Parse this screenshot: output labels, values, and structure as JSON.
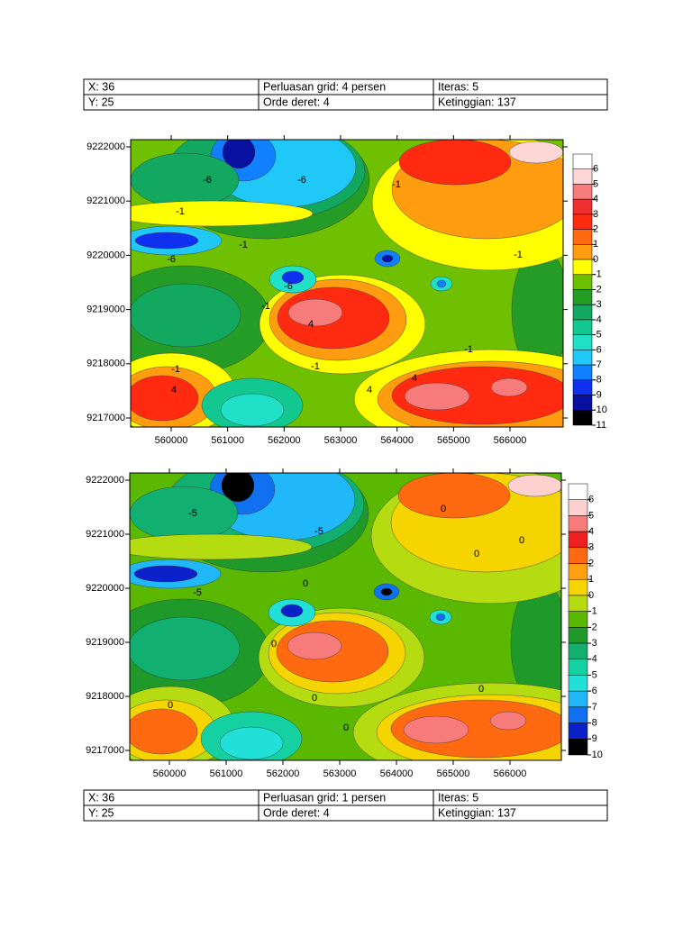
{
  "figures": [
    {
      "table": {
        "rows": [
          [
            "X: 36",
            "Perluasan grid: 4 persen",
            "Iteras: 5"
          ],
          [
            "Y: 25",
            "Orde deret: 4",
            "Ketinggian: 137"
          ]
        ]
      },
      "map": {
        "xticks": [
          560000,
          561000,
          562000,
          563000,
          564000,
          565000,
          566000
        ],
        "yticks": [
          9222000,
          9221000,
          9220000,
          9219000,
          9218000,
          9217000
        ],
        "colorbar_labels": [
          6,
          5,
          4,
          3,
          2,
          1,
          0,
          -1,
          -2,
          -3,
          -4,
          -5,
          -6,
          -7,
          -8,
          -9,
          -10,
          -11
        ],
        "colorbar_colors": [
          "#ffffff",
          "#ffd6d6",
          "#f77b7b",
          "#f03030",
          "#ff2a10",
          "#ff6a10",
          "#ff9c10",
          "#ffff00",
          "#6ec000",
          "#259c25",
          "#12a860",
          "#12c890",
          "#20e0c8",
          "#20c8f8",
          "#1080ff",
          "#1030f0",
          "#0810a0",
          "#000000"
        ],
        "contour_labels": [
          "-6",
          "-6",
          "-1",
          "-1",
          "-1",
          "-6",
          "-6",
          "-1",
          "4",
          "-1",
          "-1",
          "4",
          "4",
          "4",
          "-1",
          "-1"
        ]
      }
    },
    {
      "table": {
        "rows": [
          [
            "X: 36",
            "Perluasan grid: 1 persen",
            "Iteras: 5"
          ],
          [
            "Y: 25",
            "Orde deret: 4",
            "Ketinggian: 137"
          ]
        ]
      },
      "map": {
        "xticks": [
          560000,
          561000,
          562000,
          563000,
          564000,
          565000,
          566000
        ],
        "yticks": [
          9222000,
          9221000,
          9220000,
          9219000,
          9218000,
          9217000
        ],
        "colorbar_labels": [
          6,
          5,
          4,
          3,
          2,
          1,
          0,
          -1,
          -2,
          -3,
          -4,
          -5,
          -6,
          -7,
          -8,
          -9,
          -10
        ],
        "colorbar_colors": [
          "#ffffff",
          "#ffd0d0",
          "#f77b7b",
          "#f02020",
          "#ff6a10",
          "#ffa010",
          "#f5d400",
          "#b4dc10",
          "#5ab800",
          "#1f9a2a",
          "#12b070",
          "#15d0a0",
          "#20e0d8",
          "#20b8f8",
          "#1070f0",
          "#0a20c8",
          "#000000"
        ],
        "contour_labels": [
          "-5",
          "-5",
          "-5",
          "0",
          "0",
          "0",
          "0",
          "0",
          "0",
          "0",
          "0",
          "0"
        ]
      }
    }
  ]
}
